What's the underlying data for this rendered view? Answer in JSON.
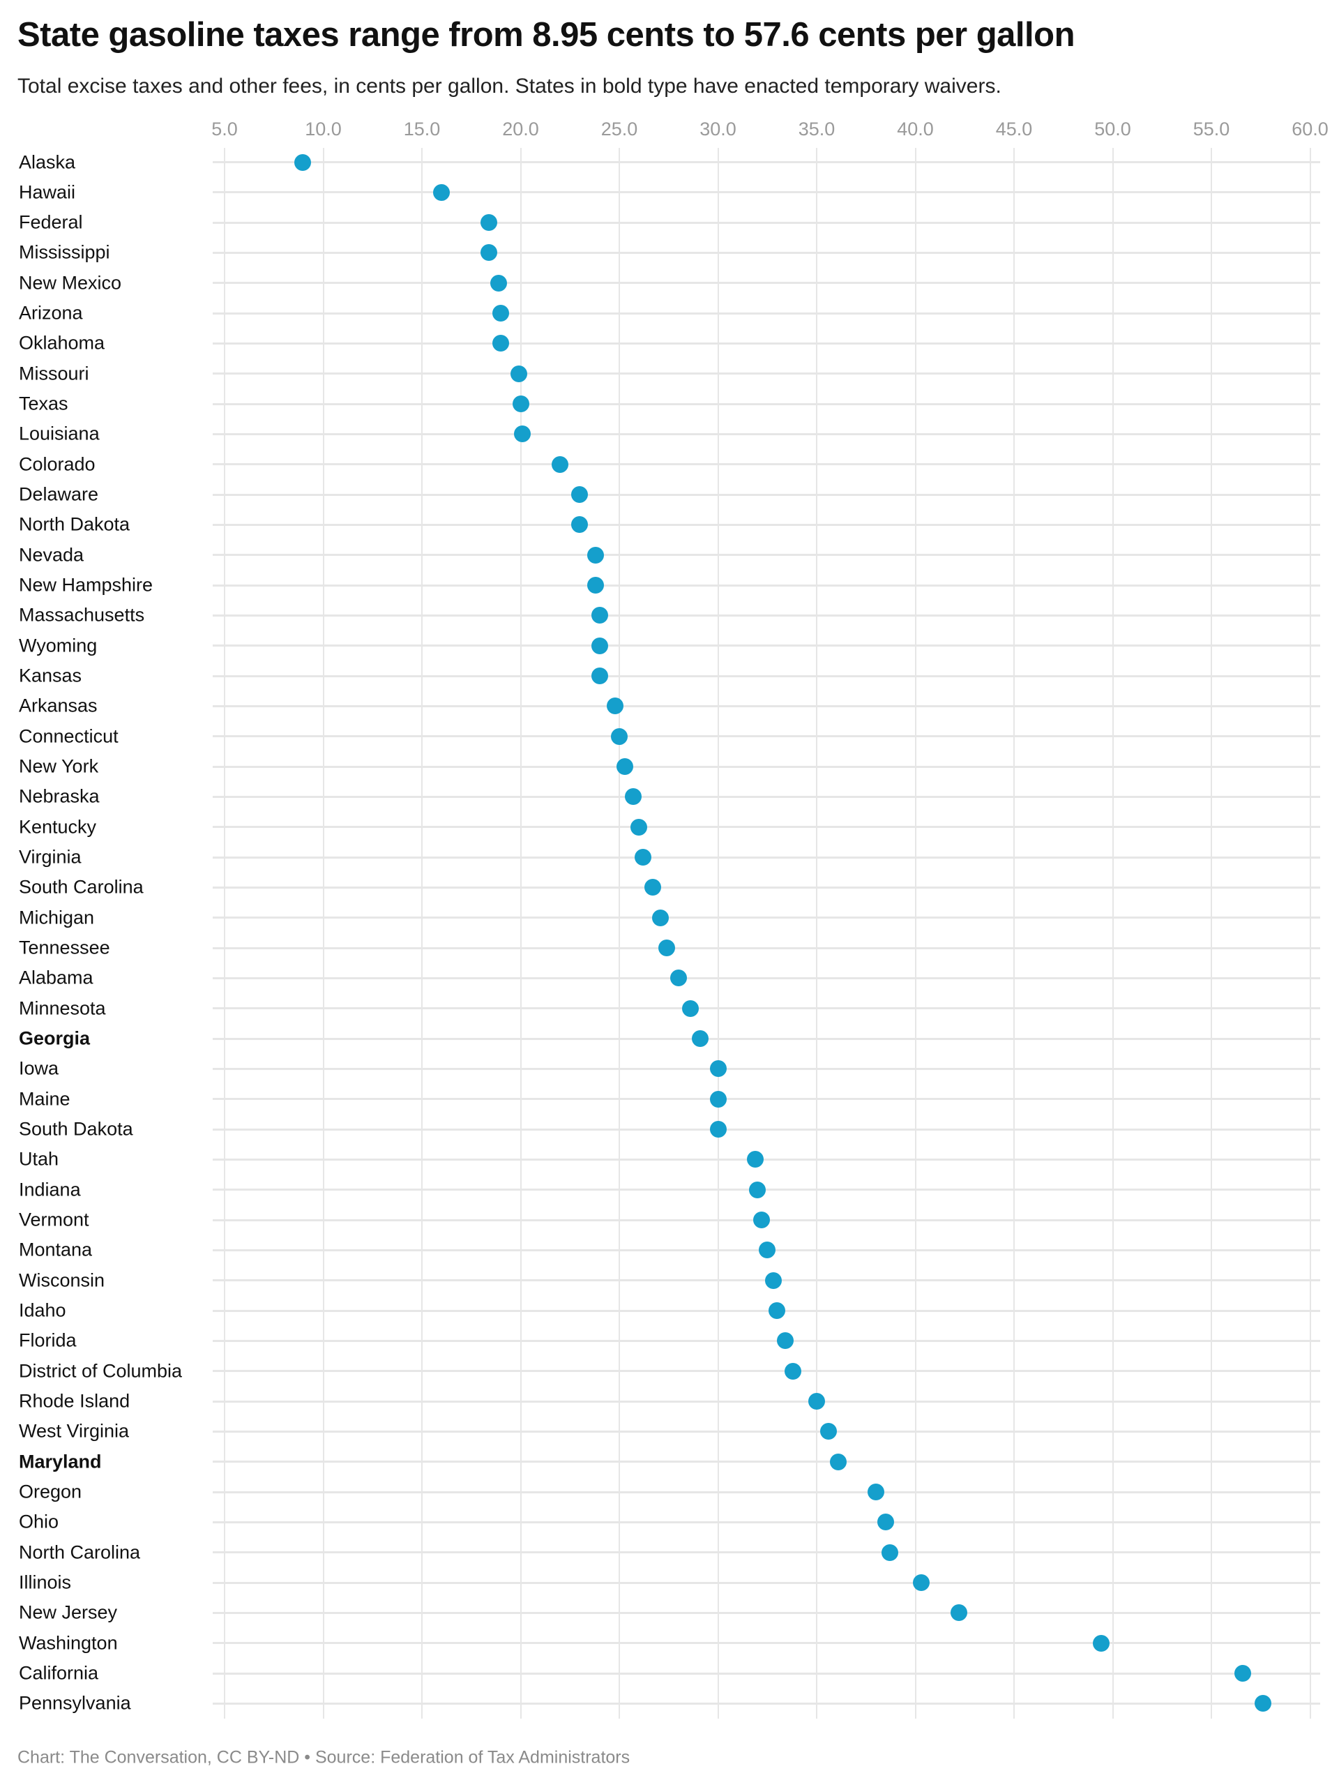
{
  "header": {
    "title": "State gasoline taxes range from 8.95 cents to 57.6 cents per gallon",
    "subtitle": "Total excise taxes and other fees, in cents per gallon. States in bold type have enacted temporary waivers."
  },
  "footer": {
    "credit": "Chart: The Conversation, CC BY-ND • Source: Federation of Tax Administrators"
  },
  "colors": {
    "dot": "#159fcc",
    "grid": "#e6e6e6",
    "tick_label": "#9a9a9a"
  },
  "chart_data": {
    "type": "scatter",
    "subtype": "dot-plot",
    "title": "State gasoline taxes range from 8.95 cents to 57.6 cents per gallon",
    "subtitle": "Total excise taxes and other fees, in cents per gallon. States in bold type have enacted temporary waivers.",
    "xlabel": "",
    "ylabel": "",
    "xlim": [
      5.0,
      60.0
    ],
    "x_ticks": [
      "5.0",
      "10.0",
      "15.0",
      "20.0",
      "25.0",
      "30.0",
      "35.0",
      "40.0",
      "45.0",
      "50.0",
      "55.0",
      "60.0"
    ],
    "x_axis_position": "top",
    "grid": true,
    "legend": null,
    "categories": [
      "Alaska",
      "Hawaii",
      "Federal",
      "Mississippi",
      "New Mexico",
      "Arizona",
      "Oklahoma",
      "Missouri",
      "Texas",
      "Louisiana",
      "Colorado",
      "Delaware",
      "North Dakota",
      "Nevada",
      "New Hampshire",
      "Massachusetts",
      "Wyoming",
      "Kansas",
      "Arkansas",
      "Connecticut",
      "New York",
      "Nebraska",
      "Kentucky",
      "Virginia",
      "South Carolina",
      "Michigan",
      "Tennessee",
      "Alabama",
      "Minnesota",
      "Georgia",
      "Iowa",
      "Maine",
      "South Dakota",
      "Utah",
      "Indiana",
      "Vermont",
      "Montana",
      "Wisconsin",
      "Idaho",
      "Florida",
      "District of Columbia",
      "Rhode Island",
      "West Virginia",
      "Maryland",
      "Oregon",
      "Ohio",
      "North Carolina",
      "Illinois",
      "New Jersey",
      "Washington",
      "California",
      "Pennsylvania"
    ],
    "values": [
      8.95,
      16.0,
      18.4,
      18.4,
      18.9,
      19.0,
      19.0,
      19.9,
      20.0,
      20.1,
      22.0,
      23.0,
      23.0,
      23.8,
      23.8,
      24.0,
      24.0,
      24.0,
      24.8,
      25.0,
      25.3,
      25.7,
      26.0,
      26.2,
      26.7,
      27.1,
      27.4,
      28.0,
      28.6,
      29.1,
      30.0,
      30.0,
      30.0,
      31.9,
      32.0,
      32.2,
      32.5,
      32.8,
      33.0,
      33.4,
      33.8,
      35.0,
      35.6,
      36.1,
      38.0,
      38.5,
      38.7,
      40.3,
      42.2,
      49.4,
      56.6,
      57.6
    ],
    "bold_categories": [
      "Georgia",
      "Maryland"
    ],
    "annotations": []
  }
}
